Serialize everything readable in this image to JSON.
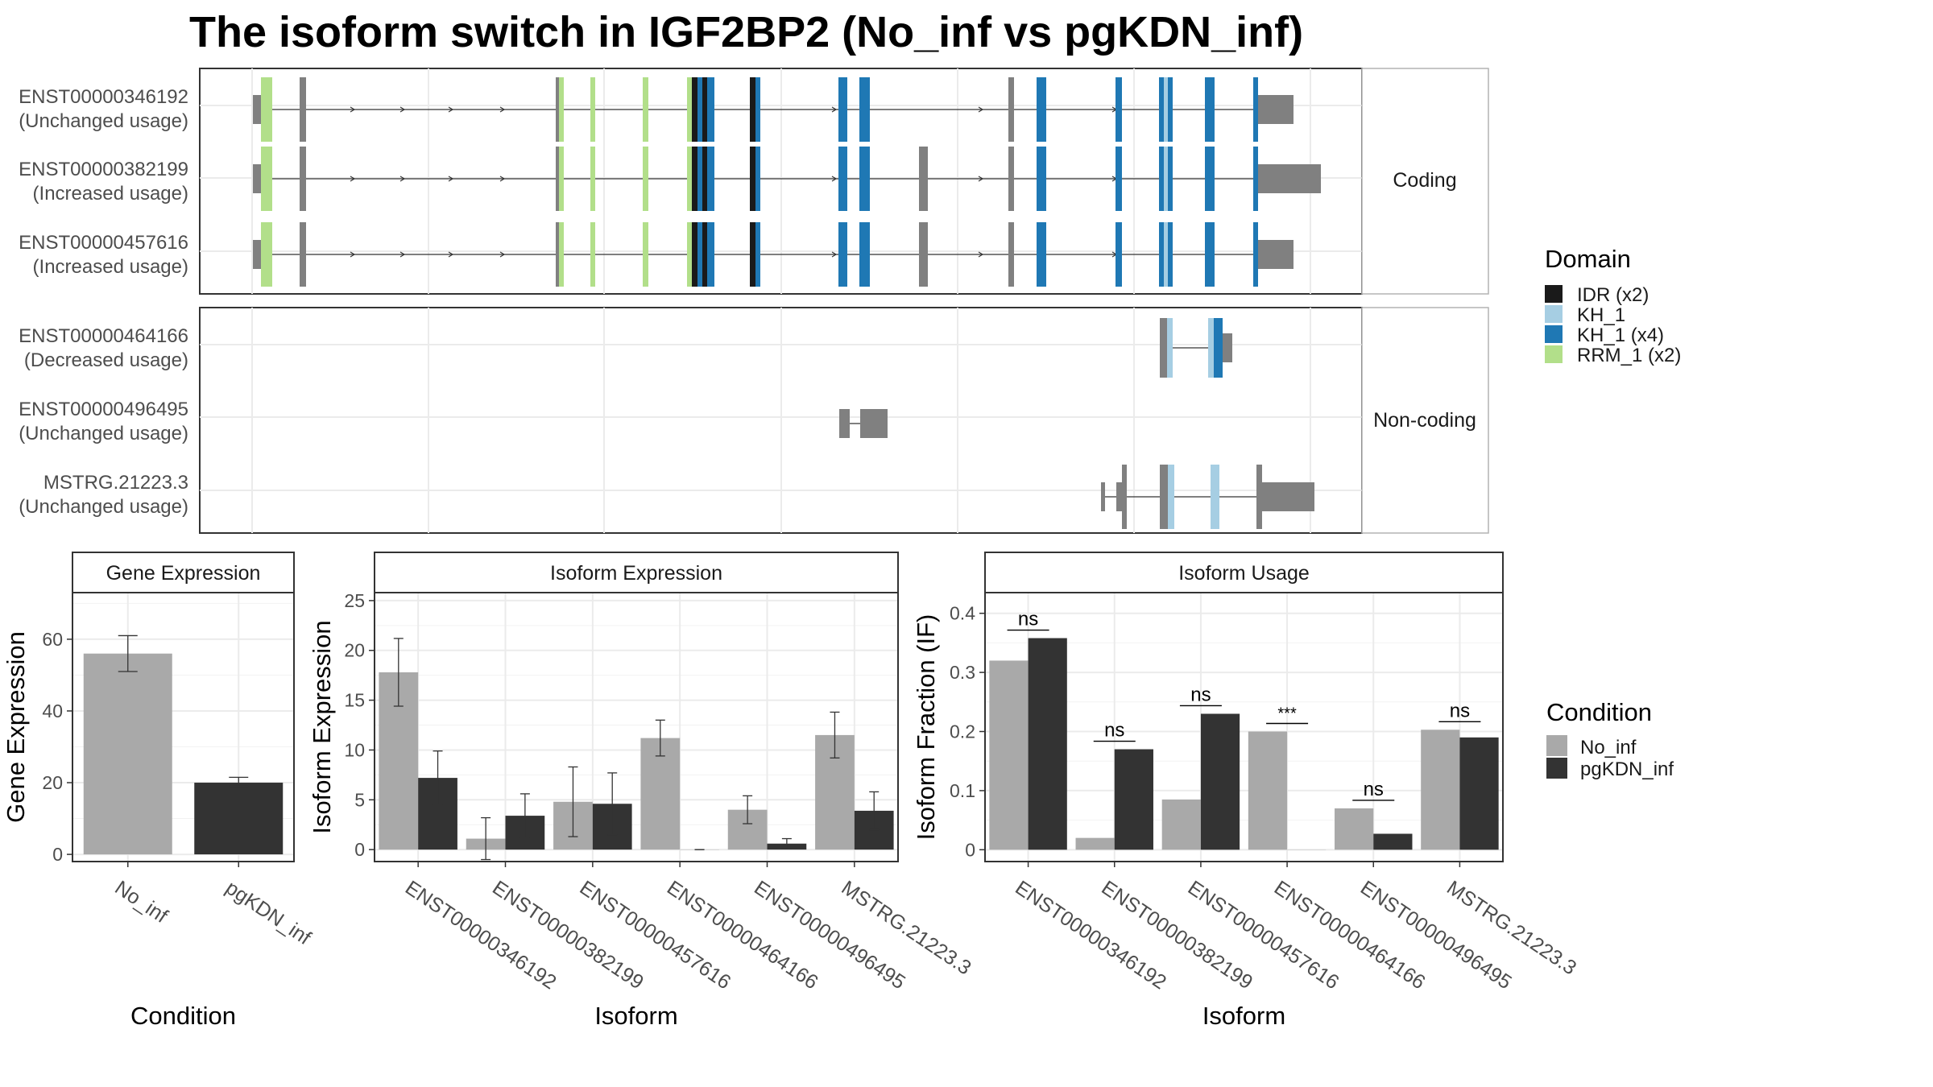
{
  "title": "The isoform switch in IGF2BP2 (No_inf vs pgKDN_inf)",
  "structure": {
    "groups": [
      {
        "label": "Coding",
        "isoforms": [
          {
            "id": "ENST00000346192",
            "usage": "(Unchanged usage)"
          },
          {
            "id": "ENST00000382199",
            "usage": "(Increased usage)"
          },
          {
            "id": "ENST00000457616",
            "usage": "(Increased usage)"
          }
        ]
      },
      {
        "label": "Non-coding",
        "isoforms": [
          {
            "id": "ENST00000464166",
            "usage": "(Decreased usage)"
          },
          {
            "id": "ENST00000496495",
            "usage": "(Unchanged usage)"
          },
          {
            "id": "MSTRG.21223.3",
            "usage": "(Unchanged usage)"
          }
        ]
      }
    ]
  },
  "domain_legend": {
    "title": "Domain",
    "items": [
      {
        "label": "IDR (x2)",
        "color": "#1a1a1a"
      },
      {
        "label": "KH_1",
        "color": "#a6cee3"
      },
      {
        "label": "KH_1 (x4)",
        "color": "#1f78b4"
      },
      {
        "label": "RRM_1 (x2)",
        "color": "#b2df8a"
      }
    ]
  },
  "condition_legend": {
    "title": "Condition",
    "items": [
      {
        "label": "No_inf",
        "color": "#a9a9a9"
      },
      {
        "label": "pgKDN_inf",
        "color": "#333333"
      }
    ]
  },
  "chart_data": [
    {
      "type": "bar",
      "title": "Gene Expression",
      "xlabel": "Condition",
      "ylabel": "Gene Expression",
      "categories": [
        "No_inf",
        "pgKDN_inf"
      ],
      "values": [
        56,
        20
      ],
      "error_low": [
        51,
        19
      ],
      "error_high": [
        61,
        21.5
      ],
      "ylim": [
        -2,
        73
      ],
      "yticks": [
        0,
        20,
        40,
        60
      ]
    },
    {
      "type": "bar",
      "title": "Isoform Expression",
      "xlabel": "Isoform",
      "ylabel": "Isoform Expression",
      "categories": [
        "ENST00000346192",
        "ENST00000382199",
        "ENST00000457616",
        "ENST00000464166",
        "ENST00000496495",
        "MSTRG.21223.3"
      ],
      "series": [
        {
          "name": "No_inf",
          "values": [
            17.8,
            1.1,
            4.8,
            11.2,
            4.0,
            11.5
          ],
          "error_low": [
            14.4,
            -1.0,
            1.3,
            9.4,
            2.6,
            9.2
          ],
          "error_high": [
            21.2,
            3.2,
            8.3,
            13.0,
            5.4,
            13.8
          ]
        },
        {
          "name": "pgKDN_inf",
          "values": [
            7.2,
            3.4,
            4.6,
            0.0,
            0.6,
            3.9
          ],
          "error_low": [
            4.5,
            1.2,
            1.5,
            0.0,
            0.1,
            2.0
          ],
          "error_high": [
            9.9,
            5.6,
            7.7,
            0.0,
            1.1,
            5.8
          ]
        }
      ],
      "ylim": [
        -1.2,
        25.8
      ],
      "yticks": [
        0,
        5,
        10,
        15,
        20,
        25
      ]
    },
    {
      "type": "bar",
      "title": "Isoform Usage",
      "xlabel": "Isoform",
      "ylabel": "Isoform Fraction (IF)",
      "categories": [
        "ENST00000346192",
        "ENST00000382199",
        "ENST00000457616",
        "ENST00000464166",
        "ENST00000496495",
        "MSTRG.21223.3"
      ],
      "series": [
        {
          "name": "No_inf",
          "values": [
            0.32,
            0.02,
            0.085,
            0.2,
            0.07,
            0.203
          ]
        },
        {
          "name": "pgKDN_inf",
          "values": [
            0.358,
            0.17,
            0.23,
            0.0,
            0.027,
            0.19
          ]
        }
      ],
      "significance": [
        "ns",
        "ns",
        "ns",
        "***",
        "ns",
        "ns"
      ],
      "ylim": [
        -0.02,
        0.435
      ],
      "yticks": [
        0.0,
        0.1,
        0.2,
        0.3,
        0.4
      ]
    }
  ]
}
